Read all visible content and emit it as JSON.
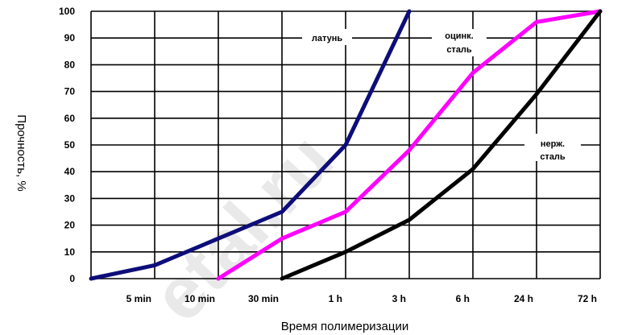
{
  "chart_data": {
    "type": "line",
    "categories": [
      "",
      "5 min",
      "10 min",
      "30 min",
      "1 h",
      "3 h",
      "6 h",
      "24 h",
      "72 h"
    ],
    "ylim": [
      0,
      100
    ],
    "yticks": [
      0,
      10,
      20,
      30,
      40,
      50,
      60,
      70,
      80,
      90,
      100
    ],
    "xlabel": "Время полимеризации",
    "ylabel": "Прочность, %",
    "grid": true,
    "watermark": "etal.ru",
    "series": [
      {
        "name": "латунь",
        "color": "#0d0d7a",
        "values": [
          0,
          5,
          15,
          25,
          50,
          100,
          null,
          null,
          null
        ]
      },
      {
        "name": "оцинк. сталь",
        "name_lines": [
          "оцинк.",
          "сталь"
        ],
        "color": "#ff00ff",
        "values": [
          null,
          null,
          0,
          15,
          25,
          48,
          77,
          96,
          100
        ]
      },
      {
        "name": "нерж. сталь",
        "name_lines": [
          "нерж.",
          "сталь"
        ],
        "color": "#000000",
        "values": [
          null,
          null,
          null,
          0,
          10,
          22,
          41,
          69,
          100
        ]
      }
    ]
  }
}
